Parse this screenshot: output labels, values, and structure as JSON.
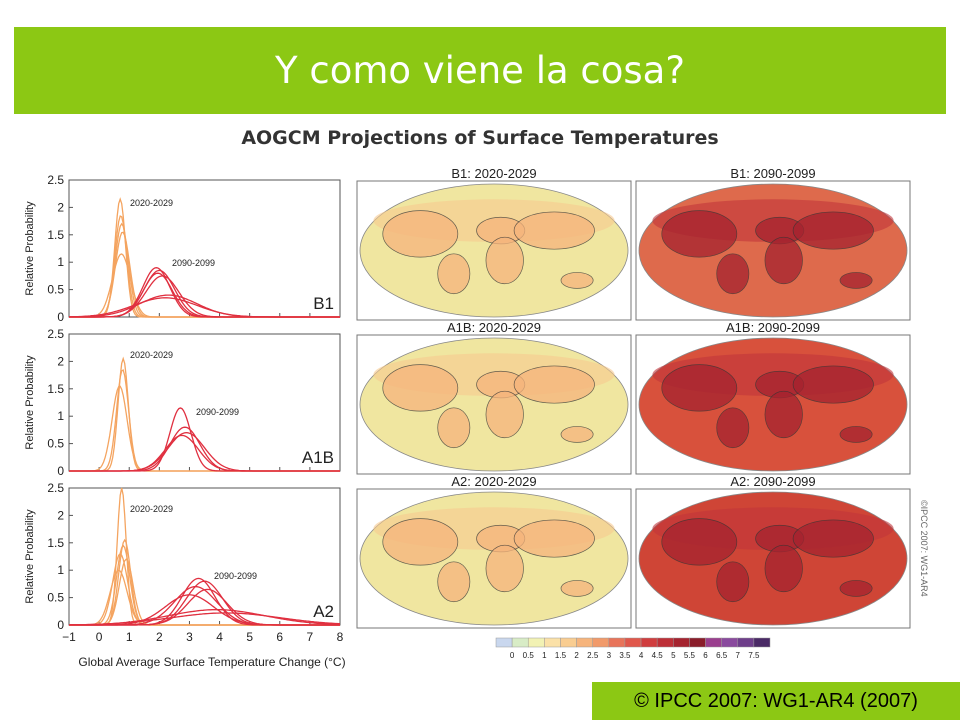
{
  "slide": {
    "title": "Y como viene la cosa?",
    "figure_title": "AOGCM Projections of Surface Temperatures",
    "copyright": "© IPCC 2007: WG1-AR4 (2007)",
    "watermark": "©IPCC 2007: WG1-AR4",
    "accent_color": "#8cc814"
  },
  "chart_data": [
    {
      "type": "line",
      "scenario": "B1",
      "xlabel": "",
      "ylabel": "Relative Probability",
      "xlim": [
        -1,
        8
      ],
      "ylim": [
        0,
        2.5
      ],
      "yticks": [
        "0",
        "0.5",
        "1",
        "1.5",
        "2",
        "2.5"
      ],
      "series": [
        {
          "name": "2020-2029",
          "color": "#f4a460",
          "curves": [
            {
              "mu": 0.7,
              "sigma": 0.18,
              "peak": 2.15
            },
            {
              "mu": 0.72,
              "sigma": 0.2,
              "peak": 1.85
            },
            {
              "mu": 0.75,
              "sigma": 0.22,
              "peak": 1.7
            },
            {
              "mu": 0.78,
              "sigma": 0.24,
              "peak": 1.55
            },
            {
              "mu": 0.74,
              "sigma": 0.3,
              "peak": 1.15
            }
          ]
        },
        {
          "name": "2090-2099",
          "color": "#e03040",
          "curves": [
            {
              "mu": 1.9,
              "sigma": 0.45,
              "peak": 0.9
            },
            {
              "mu": 2.0,
              "sigma": 0.5,
              "peak": 0.85
            },
            {
              "mu": 2.1,
              "sigma": 0.55,
              "peak": 0.75
            },
            {
              "mu": 1.95,
              "sigma": 0.48,
              "peak": 0.8
            },
            {
              "mu": 2.3,
              "sigma": 0.95,
              "peak": 0.4
            },
            {
              "mu": 2.2,
              "sigma": 1.05,
              "peak": 0.35
            }
          ]
        }
      ]
    },
    {
      "type": "line",
      "scenario": "A1B",
      "xlabel": "",
      "ylabel": "Relative Probability",
      "xlim": [
        -1,
        8
      ],
      "ylim": [
        0,
        2.5
      ],
      "yticks": [
        "0",
        "0.5",
        "1",
        "1.5",
        "2",
        "2.5"
      ],
      "series": [
        {
          "name": "2020-2029",
          "color": "#f4a460",
          "curves": [
            {
              "mu": 0.8,
              "sigma": 0.17,
              "peak": 2.05
            },
            {
              "mu": 0.78,
              "sigma": 0.2,
              "peak": 1.85
            },
            {
              "mu": 0.68,
              "sigma": 0.25,
              "peak": 1.55
            }
          ]
        },
        {
          "name": "2090-2099",
          "color": "#e03040",
          "curves": [
            {
              "mu": 2.7,
              "sigma": 0.35,
              "peak": 1.15
            },
            {
              "mu": 2.85,
              "sigma": 0.5,
              "peak": 0.8
            },
            {
              "mu": 2.9,
              "sigma": 0.6,
              "peak": 0.7
            },
            {
              "mu": 2.75,
              "sigma": 0.55,
              "peak": 0.65
            }
          ]
        }
      ]
    },
    {
      "type": "line",
      "scenario": "A2",
      "xlabel": "Global Average Surface Temperature Change (°C)",
      "ylabel": "Relative Probability",
      "xlim": [
        -1,
        8
      ],
      "ylim": [
        0,
        2.5
      ],
      "xticks": [
        "−1",
        "0",
        "1",
        "2",
        "3",
        "4",
        "5",
        "6",
        "7",
        "8"
      ],
      "yticks": [
        "0",
        "0.5",
        "1",
        "1.5",
        "2",
        "2.5"
      ],
      "series": [
        {
          "name": "2020-2029",
          "color": "#f4a460",
          "curves": [
            {
              "mu": 0.75,
              "sigma": 0.15,
              "peak": 2.5
            },
            {
              "mu": 0.85,
              "sigma": 0.2,
              "peak": 1.55
            },
            {
              "mu": 0.8,
              "sigma": 0.22,
              "peak": 1.45
            },
            {
              "mu": 0.7,
              "sigma": 0.25,
              "peak": 1.3
            },
            {
              "mu": 0.9,
              "sigma": 0.23,
              "peak": 1.2
            },
            {
              "mu": 0.65,
              "sigma": 0.28,
              "peak": 1.0
            }
          ]
        },
        {
          "name": "2090-2099",
          "color": "#e03040",
          "curves": [
            {
              "mu": 3.3,
              "sigma": 0.55,
              "peak": 0.85
            },
            {
              "mu": 3.5,
              "sigma": 0.6,
              "peak": 0.8
            },
            {
              "mu": 3.2,
              "sigma": 0.7,
              "peak": 0.7
            },
            {
              "mu": 3.6,
              "sigma": 0.65,
              "peak": 0.65
            },
            {
              "mu": 3.0,
              "sigma": 0.8,
              "peak": 0.55
            },
            {
              "mu": 3.9,
              "sigma": 1.6,
              "peak": 0.28
            },
            {
              "mu": 4.2,
              "sigma": 1.8,
              "peak": 0.22
            }
          ]
        }
      ]
    },
    {
      "type": "heatmap",
      "maps": [
        {
          "title": "B1: 2020-2029",
          "color": "#f0e6a0"
        },
        {
          "title": "B1: 2090-2099",
          "color": "#de6a4c"
        },
        {
          "title": "A1B: 2020-2029",
          "color": "#f0e6a0"
        },
        {
          "title": "A1B: 2090-2099",
          "color": "#d8513c"
        },
        {
          "title": "A2: 2020-2029",
          "color": "#f0e6a0"
        },
        {
          "title": "A2: 2090-2099",
          "color": "#cf4536"
        }
      ],
      "colorbar": {
        "ticks": [
          "0",
          "0.5",
          "1",
          "1.5",
          "2",
          "2.5",
          "3",
          "3.5",
          "4",
          "4.5",
          "5",
          "5.5",
          "6",
          "6.5",
          "7",
          "7.5"
        ],
        "colors": [
          "#c9d7ee",
          "#d8ecc6",
          "#f2f2b4",
          "#fbe1a8",
          "#f9cd91",
          "#f6b47c",
          "#f19a6a",
          "#e8745a",
          "#e0574b",
          "#d03d3e",
          "#bd2f37",
          "#a5232f",
          "#8a1d2a",
          "#9a3e8e",
          "#8a4a9e",
          "#6e3e8a",
          "#4a2a66"
        ]
      }
    }
  ]
}
